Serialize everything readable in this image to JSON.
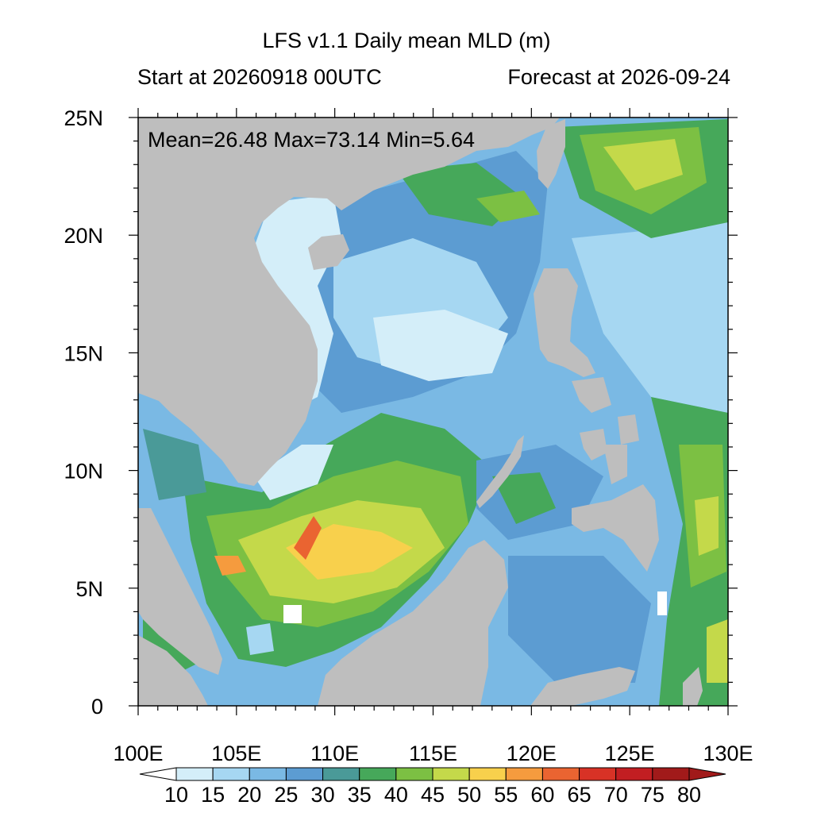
{
  "title": "LFS v1.1 Daily mean MLD (m)",
  "start_label": "Start at 20260918 00UTC",
  "forecast_label": "Forecast at 2026-09-24",
  "stats": "Mean=26.48  Max=73.14  Min=5.64",
  "map": {
    "lon_range": [
      100,
      130
    ],
    "lat_range": [
      0,
      25
    ],
    "land_color": "#bebebe",
    "x_ticks": [
      "100E",
      "105E",
      "110E",
      "115E",
      "120E",
      "125E",
      "130E"
    ],
    "y_ticks": [
      "0",
      "5N",
      "10N",
      "15N",
      "20N",
      "25N"
    ]
  },
  "colorbar": {
    "labels": [
      "10",
      "15",
      "20",
      "25",
      "30",
      "35",
      "40",
      "45",
      "50",
      "55",
      "60",
      "65",
      "70",
      "75",
      "80"
    ],
    "colors": [
      "#ffffff",
      "#d4eef9",
      "#a6d7f2",
      "#7ab9e4",
      "#5c9cd2",
      "#4a9a98",
      "#46a85a",
      "#7cc043",
      "#c4d94a",
      "#f8d04c",
      "#f59b3e",
      "#ea6431",
      "#d83226",
      "#c21e22",
      "#a11a1a"
    ]
  }
}
